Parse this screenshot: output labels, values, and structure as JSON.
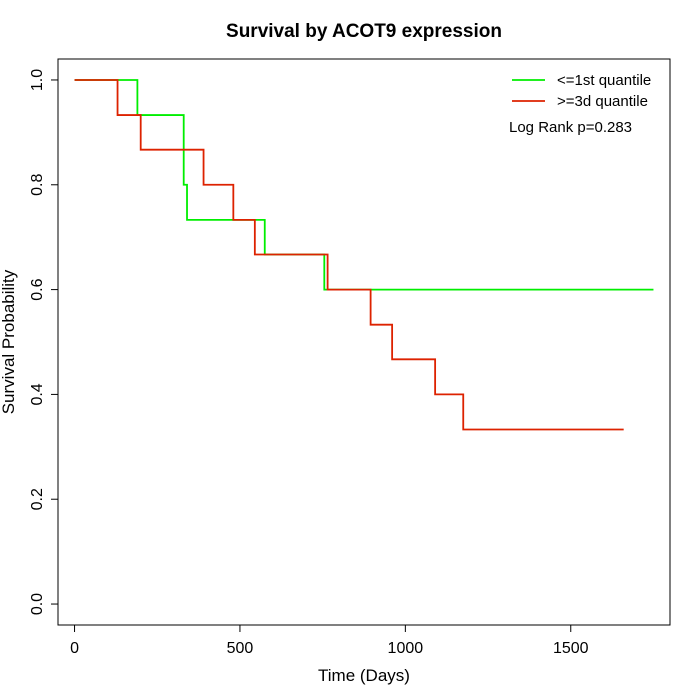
{
  "chart_data": {
    "type": "line",
    "title": "Survival by ACOT9 expression",
    "xlabel": "Time (Days)",
    "ylabel": "Survival Probability",
    "xlim": [
      -50,
      1800
    ],
    "ylim": [
      -0.04,
      1.04
    ],
    "x_ticks": [
      0,
      500,
      1000,
      1500
    ],
    "y_ticks": [
      0.0,
      0.2,
      0.4,
      0.6,
      0.8,
      1.0
    ],
    "x_tick_labels": [
      "0",
      "500",
      "1000",
      "1500"
    ],
    "y_tick_labels": [
      "0.0",
      "0.2",
      "0.4",
      "0.6",
      "0.8",
      "1.0"
    ],
    "grid": false,
    "legend_position": "top-right",
    "annotation": "Log Rank p=0.283",
    "series": [
      {
        "name": "<=1st quantile",
        "color": "#00ee00",
        "step": true,
        "x": [
          0,
          190,
          330,
          340,
          575,
          755,
          1750
        ],
        "y": [
          1.0,
          0.933,
          0.8,
          0.733,
          0.667,
          0.6,
          0.6
        ]
      },
      {
        "name": ">=3d quantile",
        "color": "#dd2200",
        "step": true,
        "x": [
          0,
          130,
          200,
          390,
          480,
          545,
          765,
          895,
          960,
          1090,
          1175,
          1660
        ],
        "y": [
          1.0,
          0.933,
          0.867,
          0.8,
          0.733,
          0.667,
          0.6,
          0.533,
          0.467,
          0.4,
          0.333,
          0.333
        ]
      }
    ]
  }
}
